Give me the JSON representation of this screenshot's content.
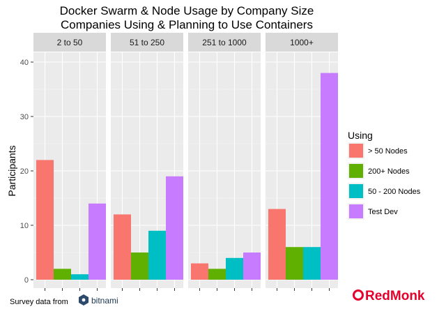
{
  "chart_data": {
    "type": "bar",
    "title": "Docker Swarm & Node Usage by Company Size",
    "subtitle": "Companies Using & Planning to Use Containers",
    "xlabel": "",
    "ylabel": "Participants",
    "ylim": [
      0,
      40
    ],
    "yticks": [
      0,
      10,
      20,
      30,
      40
    ],
    "grid": true,
    "legend_placement": "right",
    "legend_title": "Using",
    "panels": [
      "2 to 50",
      "51 to 250",
      "251 to 1000",
      "1000+"
    ],
    "series": [
      {
        "name": "> 50 Nodes",
        "color": "#F8766D",
        "values": [
          22,
          12,
          3,
          13
        ]
      },
      {
        "name": "200+ Nodes",
        "color": "#5FB000",
        "values": [
          2,
          5,
          2,
          6
        ]
      },
      {
        "name": "50 - 200 Nodes",
        "color": "#00BFC4",
        "values": [
          1,
          9,
          4,
          6
        ]
      },
      {
        "name": "Test Dev",
        "color": "#C77CFF",
        "values": [
          14,
          19,
          5,
          38
        ]
      }
    ]
  },
  "footer": {
    "survey_text": "Survey data from",
    "bitnami_text": "bitnami",
    "brand_text": "RedMonk"
  }
}
